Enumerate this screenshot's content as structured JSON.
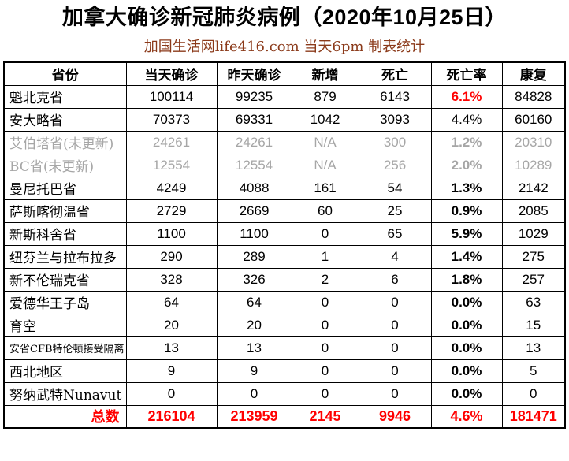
{
  "title": "加拿大确诊新冠肺炎病例（2020年10月25日）",
  "subtitle": "加国生活网life416.com 当天6pm 制表统计",
  "colors": {
    "red": "#FF0000",
    "muted_gray": "#A6A6A6",
    "black": "#000000",
    "subtitle_color": "#8B3A1A"
  },
  "chart_data": {
    "type": "table",
    "title": "加拿大确诊新冠肺炎病例（2020年10月25日）",
    "subtitle": "加国生活网life416.com 当天6pm 制表统计",
    "columns": [
      "省份",
      "当天确诊",
      "昨天确诊",
      "新增",
      "死亡",
      "死亡率",
      "康复"
    ],
    "rows": [
      {
        "province": "魁北克省",
        "today": 100114,
        "yesterday": 99235,
        "new": 879,
        "deaths": 6143,
        "rate": "6.1%",
        "recovered": 84828,
        "muted": false,
        "rate_class": "red",
        "small": false
      },
      {
        "province": "安大略省",
        "today": 70373,
        "yesterday": 69331,
        "new": 1042,
        "deaths": 3093,
        "rate": "4.4%",
        "recovered": 60160,
        "muted": false,
        "rate_class": "regular",
        "small": false
      },
      {
        "province": "艾伯塔省(未更新)",
        "today": 24261,
        "yesterday": 24261,
        "new": "N/A",
        "deaths": 300,
        "rate": "1.2%",
        "recovered": 20310,
        "muted": true,
        "rate_class": "",
        "small": false
      },
      {
        "province": "BC省(未更新)",
        "today": 12554,
        "yesterday": 12554,
        "new": "N/A",
        "deaths": 256,
        "rate": "2.0%",
        "recovered": 10289,
        "muted": true,
        "rate_class": "",
        "small": false
      },
      {
        "province": "曼尼托巴省",
        "today": 4249,
        "yesterday": 4088,
        "new": 161,
        "deaths": 54,
        "rate": "1.3%",
        "recovered": 2142,
        "muted": false,
        "rate_class": "",
        "small": false
      },
      {
        "province": "萨斯喀彻温省",
        "today": 2729,
        "yesterday": 2669,
        "new": 60,
        "deaths": 25,
        "rate": "0.9%",
        "recovered": 2085,
        "muted": false,
        "rate_class": "",
        "small": false
      },
      {
        "province": "新斯科舍省",
        "today": 1100,
        "yesterday": 1100,
        "new": 0,
        "deaths": 65,
        "rate": "5.9%",
        "recovered": 1029,
        "muted": false,
        "rate_class": "",
        "small": false
      },
      {
        "province": "纽芬兰与拉布拉多",
        "today": 290,
        "yesterday": 289,
        "new": 1,
        "deaths": 4,
        "rate": "1.4%",
        "recovered": 275,
        "muted": false,
        "rate_class": "",
        "small": false
      },
      {
        "province": "新不伦瑞克省",
        "today": 328,
        "yesterday": 326,
        "new": 2,
        "deaths": 6,
        "rate": "1.8%",
        "recovered": 257,
        "muted": false,
        "rate_class": "",
        "small": false
      },
      {
        "province": "爱德华王子岛",
        "today": 64,
        "yesterday": 64,
        "new": 0,
        "deaths": 0,
        "rate": "0.0%",
        "recovered": 63,
        "muted": false,
        "rate_class": "",
        "small": false
      },
      {
        "province": "育空",
        "today": 20,
        "yesterday": 20,
        "new": 0,
        "deaths": 0,
        "rate": "0.0%",
        "recovered": 15,
        "muted": false,
        "rate_class": "",
        "small": false
      },
      {
        "province": "安省CFB特伦顿接受隔离",
        "today": 13,
        "yesterday": 13,
        "new": 0,
        "deaths": 0,
        "rate": "0.0%",
        "recovered": 13,
        "muted": false,
        "rate_class": "",
        "small": true
      },
      {
        "province": "西北地区",
        "today": 9,
        "yesterday": 9,
        "new": 0,
        "deaths": 0,
        "rate": "0.0%",
        "recovered": 5,
        "muted": false,
        "rate_class": "",
        "small": false
      },
      {
        "province": "努纳武特Nunavut",
        "today": 0,
        "yesterday": 0,
        "new": 0,
        "deaths": 0,
        "rate": "0.0%",
        "recovered": 0,
        "muted": false,
        "rate_class": "",
        "small": false
      }
    ],
    "total": {
      "label": "总数",
      "today": 216104,
      "yesterday": 213959,
      "new": 2145,
      "deaths": 9946,
      "rate": "4.6%",
      "recovered": 181471
    }
  }
}
